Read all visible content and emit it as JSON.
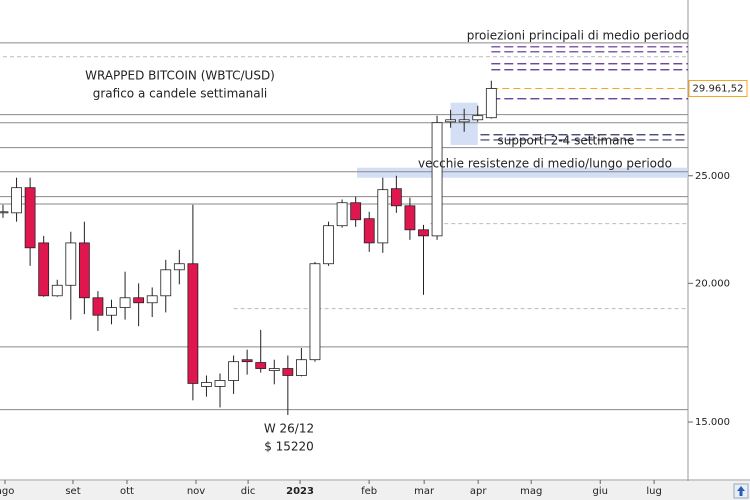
{
  "chart_data": {
    "type": "candlestick",
    "title": "WRAPPED BITCOIN (WBTC/USD)",
    "subtitle": "grafico a candele settimanali",
    "log_scale": true,
    "x": [
      0,
      1,
      2,
      3,
      4,
      5,
      6,
      7,
      8,
      9,
      10,
      11,
      12,
      13,
      14,
      15,
      16,
      17,
      18,
      19,
      20,
      21,
      22,
      23,
      24,
      25,
      26,
      27,
      28,
      29,
      30,
      31,
      32,
      33,
      34,
      35,
      36
    ],
    "open": [
      23150,
      23150,
      24390,
      21750,
      19490,
      19920,
      21750,
      19410,
      18720,
      19020,
      19410,
      19210,
      19490,
      20570,
      20830,
      16150,
      16150,
      16350,
      17070,
      16970,
      16690,
      16760,
      16520,
      17070,
      20830,
      22540,
      23640,
      22870,
      21750,
      24340,
      23490,
      22350,
      22070,
      27960,
      27960,
      28080,
      28200
    ],
    "high": [
      23540,
      24900,
      24900,
      22070,
      20150,
      22260,
      22730,
      19680,
      19330,
      20490,
      20000,
      19830,
      21000,
      21440,
      23540,
      16520,
      16590,
      17220,
      17430,
      18160,
      17070,
      17220,
      17490,
      20910,
      22730,
      23800,
      23940,
      23200,
      24900,
      25000,
      23890,
      22580,
      28320,
      28670,
      28730,
      28910,
      30450
    ],
    "low": [
      22910,
      22730,
      20740,
      19450,
      19450,
      18550,
      18760,
      18120,
      18370,
      18550,
      18300,
      18650,
      18830,
      19960,
      15690,
      15810,
      15460,
      15900,
      16550,
      16620,
      16220,
      15220,
      16490,
      17000,
      20740,
      22450,
      22490,
      21350,
      21310,
      23150,
      21890,
      19530,
      21890,
      27620,
      27390,
      27960,
      28150
    ],
    "close": [
      23200,
      24390,
      21530,
      19490,
      19920,
      21750,
      19410,
      18720,
      19020,
      19410,
      19210,
      19490,
      20570,
      20830,
      16250,
      16280,
      16350,
      17000,
      17000,
      16760,
      16760,
      16520,
      17070,
      20830,
      22540,
      23640,
      22820,
      21750,
      24290,
      23490,
      22350,
      22070,
      27910,
      28080,
      28080,
      28320,
      29960
    ],
    "up_color": "#ffffff",
    "down_color": "#e0174f",
    "ylim": [
      13300,
      36000
    ],
    "yticks": [
      {
        "value": 15000,
        "label": "15.000"
      },
      {
        "value": 20000,
        "label": "20.000"
      },
      {
        "value": 25000,
        "label": "25.000"
      }
    ],
    "xlim": [
      -0.22,
      50.5
    ],
    "xticks": [
      {
        "value": 0.15,
        "label": "ago"
      },
      {
        "value": 5.16,
        "label": "set"
      },
      {
        "value": 9.14,
        "label": "ott"
      },
      {
        "value": 14.23,
        "label": "nov"
      },
      {
        "value": 18.07,
        "label": "dic"
      },
      {
        "value": 21.9,
        "label": "2023"
      },
      {
        "value": 26.99,
        "label": "feb"
      },
      {
        "value": 31.05,
        "label": "mar"
      },
      {
        "value": 35.03,
        "label": "apr"
      },
      {
        "value": 38.94,
        "label": "mag"
      },
      {
        "value": 44.03,
        "label": "giu"
      },
      {
        "value": 48.0,
        "label": "lug"
      }
    ],
    "last_price": {
      "value": 29961.52,
      "label": "29.961,52",
      "color": "#f5a623"
    },
    "levels": {
      "color": "#8a8a8a",
      "values": [
        32940,
        28380,
        27910,
        26500,
        25210,
        23940,
        23580,
        17530,
        15390
      ]
    },
    "dashed_levels": {
      "color": "#bbbbbb",
      "values": [
        32000,
        22640,
        18980
      ],
      "x_from": [
        0,
        31.5,
        17
      ]
    },
    "projections": {
      "label": "proiezioni principali di medio periodo",
      "color": "#5a2d91",
      "values": [
        32670,
        32330,
        31540,
        31150,
        29330
      ],
      "x_from": 36
    },
    "supports": {
      "label": "supporti 2-4 settimane",
      "color": "#333366",
      "values": [
        27220,
        26930
      ],
      "x_from": 35.2
    },
    "resistance_zone": {
      "label": "vecchie resistenze di medio/lungo periodo",
      "color": "#c9d7f2",
      "range": [
        24900,
        25420
      ],
      "x_from": 26.1
    },
    "support_box": {
      "color": "#c9d7f2",
      "range": [
        26650,
        29090
      ],
      "x": [
        33,
        35
      ]
    },
    "low_annotation": [
      "W 26/12",
      "$ 15220"
    ]
  }
}
